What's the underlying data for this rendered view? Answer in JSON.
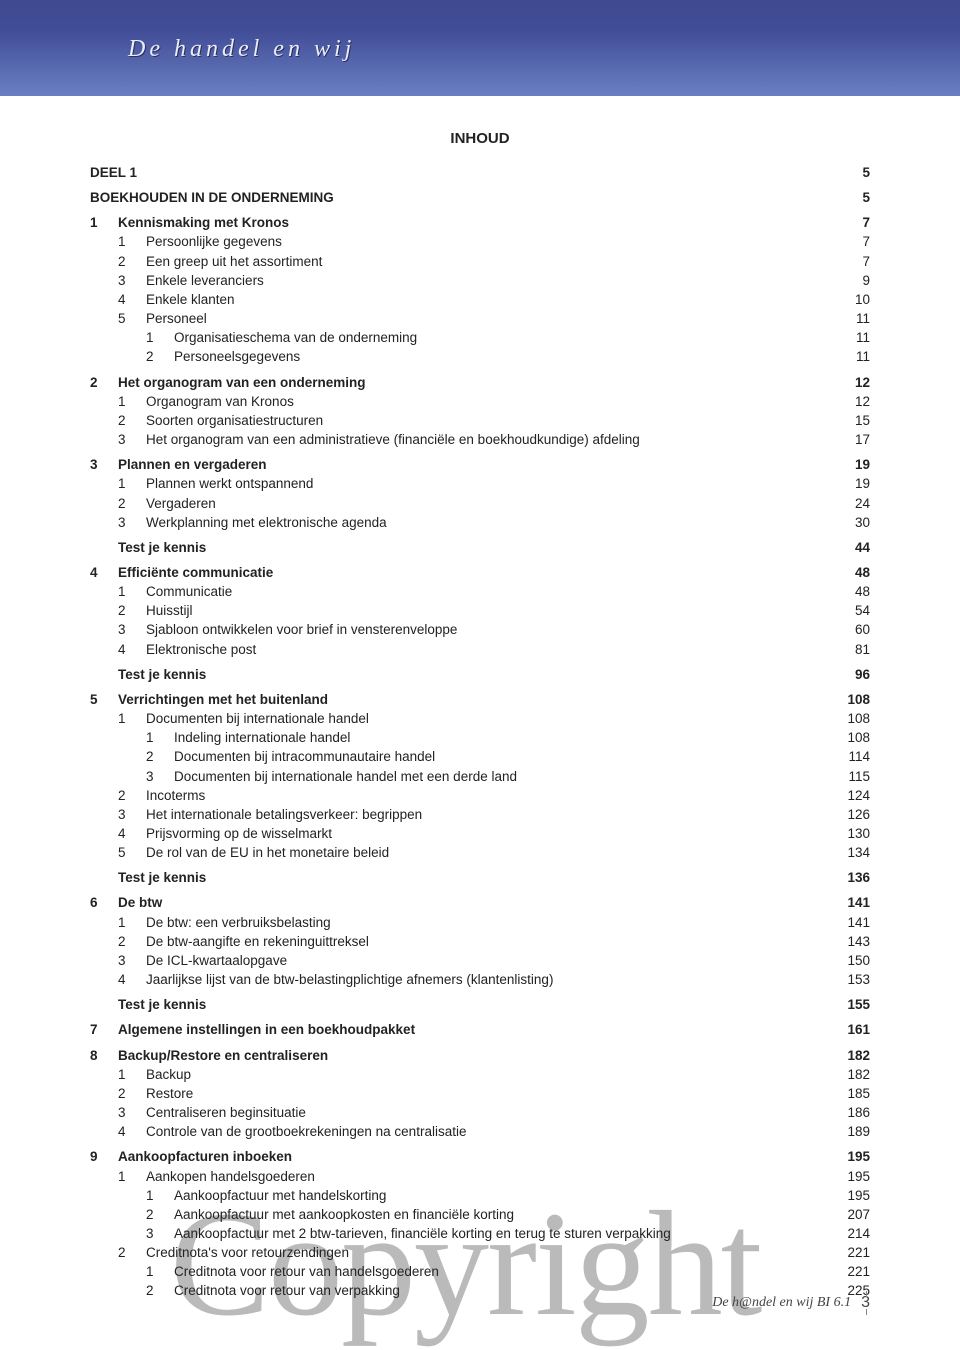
{
  "colors": {
    "header_gradient_top": "#3f4a8f",
    "header_gradient_bottom": "#6a7fc3",
    "header_text": "#e9edf7",
    "body_text": "#222222",
    "watermark": "rgba(40,40,40,0.32)"
  },
  "typography": {
    "body_font": "Verdana",
    "body_size_pt": 10,
    "header_font": "Comic Sans MS",
    "header_size_pt": 18,
    "watermark_font": "Georgia",
    "watermark_size_pt": 110
  },
  "header_title": "De handel en wij",
  "inhoud_label": "INHOUD",
  "watermark_text": "Copyright",
  "footer": {
    "text": "De h@ndel en wij BI 6.1",
    "page_number": "3"
  },
  "toc": [
    {
      "level": 0,
      "num": "",
      "label": "DEEL 1",
      "page": "5",
      "bold": true,
      "gap_after": true
    },
    {
      "level": 0,
      "num": "",
      "label": "BOEKHOUDEN IN DE ONDERNEMING",
      "page": "5",
      "bold": true,
      "gap_after": true
    },
    {
      "level": 1,
      "num": "1",
      "label": "Kennismaking met Kronos",
      "page": "7",
      "bold": true
    },
    {
      "level": 2,
      "num": "1",
      "label": "Persoonlijke gegevens",
      "page": "7"
    },
    {
      "level": 2,
      "num": "2",
      "label": "Een greep uit het assortiment",
      "page": "7"
    },
    {
      "level": 2,
      "num": "3",
      "label": "Enkele leveranciers",
      "page": "9"
    },
    {
      "level": 2,
      "num": "4",
      "label": "Enkele klanten",
      "page": "10"
    },
    {
      "level": 2,
      "num": "5",
      "label": "Personeel",
      "page": "11"
    },
    {
      "level": 3,
      "num": "1",
      "label": "Organisatieschema van de onderneming",
      "page": "11"
    },
    {
      "level": 3,
      "num": "2",
      "label": "Personeelsgegevens",
      "page": "11",
      "gap_after": true
    },
    {
      "level": 1,
      "num": "2",
      "label": "Het organogram van een onderneming",
      "page": "12",
      "bold": true
    },
    {
      "level": 2,
      "num": "1",
      "label": "Organogram van Kronos",
      "page": "12"
    },
    {
      "level": 2,
      "num": "2",
      "label": "Soorten organisatiestructuren",
      "page": "15"
    },
    {
      "level": 2,
      "num": "3",
      "label": "Het organogram van een administratieve (financiële en boekhoudkundige) afdeling",
      "page": "17",
      "gap_after": true
    },
    {
      "level": 1,
      "num": "3",
      "label": "Plannen en vergaderen",
      "page": "19",
      "bold": true
    },
    {
      "level": 2,
      "num": "1",
      "label": "Plannen werkt ontspannend",
      "page": "19"
    },
    {
      "level": 2,
      "num": "2",
      "label": "Vergaderen",
      "page": "24"
    },
    {
      "level": 2,
      "num": "3",
      "label": "Werkplanning met elektronische agenda",
      "page": "30",
      "gap_after": true
    },
    {
      "level": 1,
      "num": "",
      "label": "Test je kennis",
      "page": "44",
      "bold": true,
      "gap_after": true
    },
    {
      "level": 1,
      "num": "4",
      "label": "Efficiënte communicatie",
      "page": "48",
      "bold": true
    },
    {
      "level": 2,
      "num": "1",
      "label": "Communicatie",
      "page": "48"
    },
    {
      "level": 2,
      "num": "2",
      "label": "Huisstijl",
      "page": "54"
    },
    {
      "level": 2,
      "num": "3",
      "label": "Sjabloon ontwikkelen voor brief in vensterenveloppe",
      "page": "60"
    },
    {
      "level": 2,
      "num": "4",
      "label": "Elektronische post",
      "page": "81",
      "gap_after": true
    },
    {
      "level": 1,
      "num": "",
      "label": "Test je kennis",
      "page": "96",
      "bold": true,
      "gap_after": true
    },
    {
      "level": 1,
      "num": "5",
      "label": "Verrichtingen met het buitenland",
      "page": "108",
      "bold": true
    },
    {
      "level": 2,
      "num": "1",
      "label": "Documenten bij internationale handel",
      "page": "108"
    },
    {
      "level": 3,
      "num": "1",
      "label": "Indeling internationale handel",
      "page": "108"
    },
    {
      "level": 3,
      "num": "2",
      "label": "Documenten bij intracommunautaire handel",
      "page": "114"
    },
    {
      "level": 3,
      "num": "3",
      "label": "Documenten bij internationale handel met een derde land",
      "page": "115"
    },
    {
      "level": 2,
      "num": "2",
      "label": "Incoterms",
      "page": "124"
    },
    {
      "level": 2,
      "num": "3",
      "label": "Het internationale betalingsverkeer: begrippen",
      "page": "126"
    },
    {
      "level": 2,
      "num": "4",
      "label": "Prijsvorming op de wisselmarkt",
      "page": "130"
    },
    {
      "level": 2,
      "num": "5",
      "label": "De rol van de EU in het monetaire beleid",
      "page": "134",
      "gap_after": true
    },
    {
      "level": 1,
      "num": "",
      "label": "Test je kennis",
      "page": "136",
      "bold": true,
      "gap_after": true
    },
    {
      "level": 1,
      "num": "6",
      "label": "De btw",
      "page": "141",
      "bold": true
    },
    {
      "level": 2,
      "num": "1",
      "label": "De btw: een verbruiksbelasting",
      "page": "141"
    },
    {
      "level": 2,
      "num": "2",
      "label": "De btw-aangifte en rekeninguittreksel",
      "page": "143"
    },
    {
      "level": 2,
      "num": "3",
      "label": "De ICL-kwartaalopgave",
      "page": "150"
    },
    {
      "level": 2,
      "num": "4",
      "label": "Jaarlijkse lijst van de btw-belastingplichtige afnemers (klantenlisting)",
      "page": "153",
      "gap_after": true
    },
    {
      "level": 1,
      "num": "",
      "label": "Test je kennis",
      "page": "155",
      "bold": true,
      "gap_after": true
    },
    {
      "level": 1,
      "num": "7",
      "label": "Algemene instellingen in een boekhoudpakket",
      "page": "161",
      "bold": true,
      "gap_after": true
    },
    {
      "level": 1,
      "num": "8",
      "label": "Backup/Restore en centraliseren",
      "page": "182",
      "bold": true
    },
    {
      "level": 2,
      "num": "1",
      "label": "Backup",
      "page": "182"
    },
    {
      "level": 2,
      "num": "2",
      "label": "Restore",
      "page": "185"
    },
    {
      "level": 2,
      "num": "3",
      "label": "Centraliseren beginsituatie",
      "page": "186"
    },
    {
      "level": 2,
      "num": "4",
      "label": "Controle van de grootboekrekeningen na centralisatie",
      "page": "189",
      "gap_after": true
    },
    {
      "level": 1,
      "num": "9",
      "label": "Aankoopfacturen inboeken",
      "page": "195",
      "bold": true
    },
    {
      "level": 2,
      "num": "1",
      "label": "Aankopen handelsgoederen",
      "page": "195"
    },
    {
      "level": 3,
      "num": "1",
      "label": "Aankoopfactuur met handelskorting",
      "page": "195"
    },
    {
      "level": 3,
      "num": "2",
      "label": "Aankoopfactuur met aankoopkosten en financiële korting",
      "page": "207"
    },
    {
      "level": 3,
      "num": "3",
      "label": "Aankoopfactuur met 2 btw-tarieven, financiële korting en terug te sturen verpakking",
      "page": "214"
    },
    {
      "level": 2,
      "num": "2",
      "label": "Creditnota's voor retourzendingen",
      "page": "221"
    },
    {
      "level": 3,
      "num": "1",
      "label": "Creditnota voor retour van handelsgoederen",
      "page": "221"
    },
    {
      "level": 3,
      "num": "2",
      "label": "Creditnota voor retour van verpakking",
      "page": "225"
    }
  ]
}
